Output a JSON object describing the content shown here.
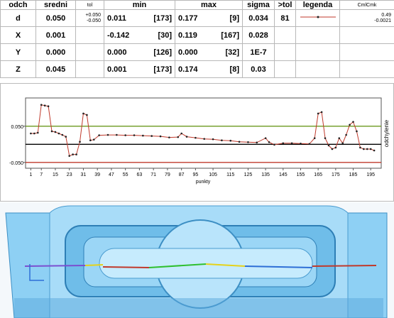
{
  "table": {
    "columns": [
      "odch",
      "sredni",
      "tol",
      "min",
      "max",
      "sigma",
      ">tol",
      "legenda",
      "CmlCmk"
    ],
    "rows": [
      [
        "d",
        "0.050",
        [
          "+0.050",
          "-0.050"
        ],
        [
          "0.011",
          "[173]"
        ],
        [
          "0.177",
          "[9]"
        ],
        "0.034",
        "81",
        null,
        [
          "0.49",
          "-0.0021"
        ]
      ],
      [
        "X",
        "0.001",
        null,
        [
          "-0.142",
          "[30]"
        ],
        [
          "0.119",
          "[167]"
        ],
        "0.028",
        null,
        null,
        null
      ],
      [
        "Y",
        "0.000",
        null,
        [
          "0.000",
          "[126]"
        ],
        [
          "0.000",
          "[32]"
        ],
        "1E-7",
        null,
        null,
        null
      ],
      [
        "Z",
        "0.045",
        null,
        [
          "0.001",
          "[173]"
        ],
        [
          "0.174",
          "[8]"
        ],
        "0.03",
        null,
        null,
        null
      ]
    ]
  },
  "chart_data": {
    "type": "line",
    "xlabel": "punkty",
    "ylabel": "odchylenie",
    "color": "#c0392b",
    "marker_color": "#222222",
    "x": [
      1,
      3,
      5,
      7,
      9,
      11,
      13,
      15,
      17,
      19,
      21,
      23,
      25,
      27,
      29,
      31,
      33,
      35,
      37,
      40,
      45,
      50,
      55,
      60,
      65,
      70,
      75,
      80,
      85,
      87,
      90,
      95,
      100,
      105,
      110,
      115,
      120,
      125,
      130,
      135,
      137,
      140,
      145,
      150,
      155,
      160,
      163,
      165,
      167,
      169,
      171,
      173,
      175,
      177,
      179,
      181,
      183,
      185,
      187,
      189,
      191,
      193,
      195,
      197
    ],
    "values": [
      0.03,
      0.03,
      0.032,
      0.109,
      0.107,
      0.105,
      0.036,
      0.034,
      0.03,
      0.026,
      0.021,
      -0.032,
      -0.028,
      -0.028,
      0.007,
      0.085,
      0.081,
      0.011,
      0.013,
      0.025,
      0.026,
      0.026,
      0.025,
      0.025,
      0.024,
      0.023,
      0.022,
      0.019,
      0.02,
      0.03,
      0.021,
      0.018,
      0.015,
      0.014,
      0.011,
      0.01,
      0.007,
      0.006,
      0.005,
      0.017,
      0.006,
      -0.001,
      0.003,
      0.003,
      0.002,
      0.001,
      0.017,
      0.085,
      0.089,
      0.017,
      -0.003,
      -0.013,
      -0.009,
      0.017,
      0.003,
      0.026,
      0.054,
      0.062,
      0.036,
      -0.009,
      -0.013,
      -0.013,
      -0.013,
      -0.017
    ],
    "xlim": [
      -2,
      201
    ],
    "ylim": [
      -0.066,
      0.128
    ],
    "xticks": [
      1,
      7,
      15,
      23,
      31,
      39,
      47,
      55,
      63,
      71,
      79,
      87,
      95,
      105,
      115,
      125,
      135,
      145,
      155,
      165,
      175,
      185,
      195
    ],
    "yticks": [
      {
        "value": 0.05,
        "label": "0.050"
      },
      {
        "value": -0.05,
        "label": "-0.050"
      }
    ],
    "ref_lines": [
      {
        "value": 0.05,
        "color": "#6b9a1e"
      },
      {
        "value": 0,
        "color": "#000000"
      },
      {
        "value": -0.05,
        "color": "#c0392b"
      }
    ]
  }
}
